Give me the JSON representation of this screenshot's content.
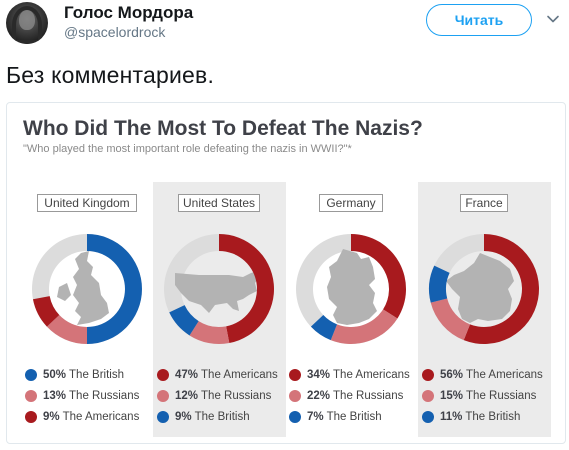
{
  "header": {
    "name": "Голос Мордора",
    "handle": "@spacelordrock",
    "follow_label": "Читать"
  },
  "tweet": {
    "text": "Без комментариев."
  },
  "infographic": {
    "title": "Who Did The Most To Defeat The Nazis?",
    "subtitle": "\"Who played the most important role defeating the nazis in WWII?\"*",
    "colors": {
      "British": "#1460b0",
      "Russians": "#d47479",
      "Americans": "#a81a1e",
      "track": "#dcdcdc",
      "silhouette": "#b3b3b3"
    }
  },
  "chart_data": {
    "type": "pie",
    "variant": "donut",
    "title": "Who Did The Most To Defeat The Nazis?",
    "subtitle": "\"Who played the most important role defeating the nazis in WWII?\"*",
    "charts": [
      {
        "country": "United Kingdom",
        "slices": [
          {
            "group": "British",
            "value": 50,
            "label": "50%",
            "text": "The British"
          },
          {
            "group": "Russians",
            "value": 13,
            "label": "13%",
            "text": "The Russians"
          },
          {
            "group": "Americans",
            "value": 9,
            "label": "9%",
            "text": "The Americans"
          }
        ]
      },
      {
        "country": "United States",
        "slices": [
          {
            "group": "Americans",
            "value": 47,
            "label": "47%",
            "text": "The Americans"
          },
          {
            "group": "Russians",
            "value": 12,
            "label": "12%",
            "text": "The Russians"
          },
          {
            "group": "British",
            "value": 9,
            "label": "9%",
            "text": "The British"
          }
        ]
      },
      {
        "country": "Germany",
        "slices": [
          {
            "group": "Americans",
            "value": 34,
            "label": "34%",
            "text": "The Americans"
          },
          {
            "group": "Russians",
            "value": 22,
            "label": "22%",
            "text": "The Russians"
          },
          {
            "group": "British",
            "value": 7,
            "label": "7%",
            "text": "The British"
          }
        ]
      },
      {
        "country": "France",
        "slices": [
          {
            "group": "Americans",
            "value": 56,
            "label": "56%",
            "text": "The Americans"
          },
          {
            "group": "Russians",
            "value": 15,
            "label": "15%",
            "text": "The Russians"
          },
          {
            "group": "British",
            "value": 11,
            "label": "11%",
            "text": "The British"
          }
        ]
      }
    ]
  }
}
